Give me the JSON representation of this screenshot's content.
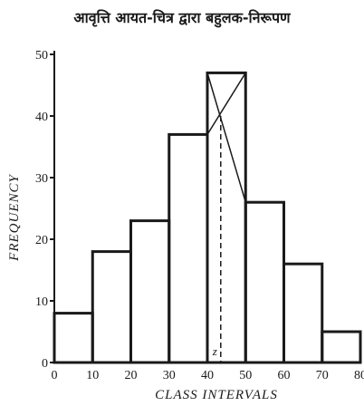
{
  "chart_data": {
    "type": "bar",
    "title": "आवृत्ति आयत-चित्र द्वारा बहुलक-निरूपण",
    "xlabel": "CLASS INTERVALS",
    "ylabel": "FREQUENCY",
    "bins": [
      {
        "from": 0,
        "to": 10,
        "value": 8
      },
      {
        "from": 10,
        "to": 20,
        "value": 18
      },
      {
        "from": 20,
        "to": 30,
        "value": 23
      },
      {
        "from": 30,
        "to": 40,
        "value": 37
      },
      {
        "from": 40,
        "to": 50,
        "value": 47
      },
      {
        "from": 50,
        "to": 60,
        "value": 26
      },
      {
        "from": 60,
        "to": 70,
        "value": 16
      },
      {
        "from": 70,
        "to": 80,
        "value": 5
      }
    ],
    "xticks": [
      "0",
      "10",
      "20",
      "30",
      "40",
      "50",
      "60",
      "70",
      "80"
    ],
    "yticks": [
      "0",
      "10",
      "20",
      "30",
      "40",
      "50"
    ],
    "xlim": [
      0,
      80
    ],
    "ylim": [
      0,
      50
    ],
    "mode": {
      "label": "z",
      "value": 43.5
    },
    "grid": false
  }
}
